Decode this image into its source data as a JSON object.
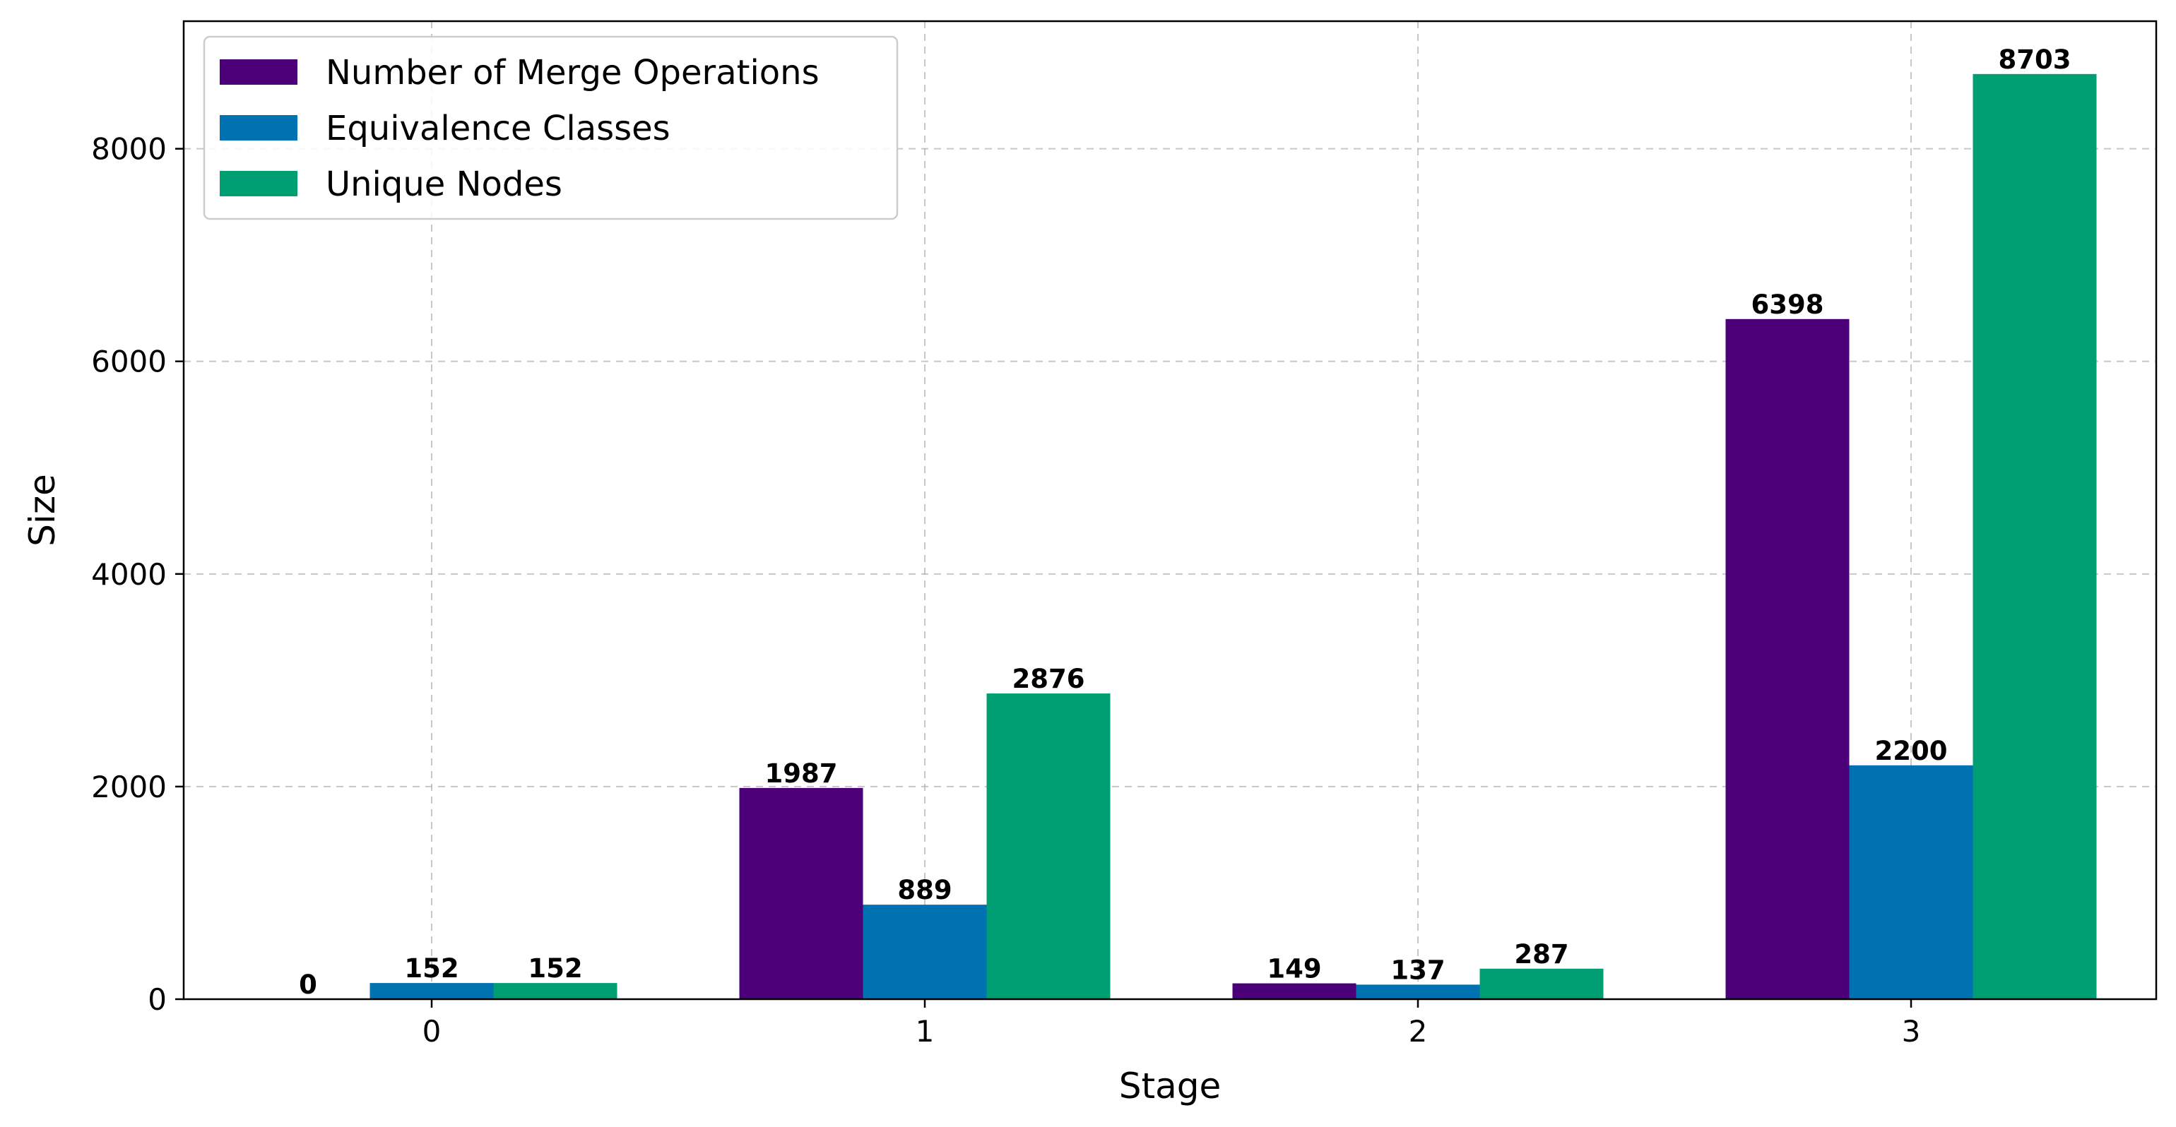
{
  "chart_data": {
    "type": "bar",
    "title": "",
    "xlabel": "Stage",
    "ylabel": "Size",
    "categories": [
      "0",
      "1",
      "2",
      "3"
    ],
    "yticks": [
      "0",
      "2000",
      "4000",
      "6000",
      "8000"
    ],
    "ylim": [
      0,
      9200
    ],
    "grid": true,
    "legend_position": "top-left",
    "series": [
      {
        "name": "Number of Merge Operations",
        "color": "#4b0079",
        "values": [
          0,
          1987,
          149,
          6398
        ],
        "labels": [
          "0",
          "1987",
          "149",
          "6398"
        ]
      },
      {
        "name": "Equivalence Classes",
        "color": "#0072b2",
        "values": [
          152,
          889,
          137,
          2200
        ],
        "labels": [
          "152",
          "889",
          "137",
          "2200"
        ]
      },
      {
        "name": "Unique Nodes",
        "color": "#009e73",
        "values": [
          152,
          2876,
          287,
          8703
        ],
        "labels": [
          "152",
          "2876",
          "287",
          "8703"
        ]
      }
    ]
  }
}
